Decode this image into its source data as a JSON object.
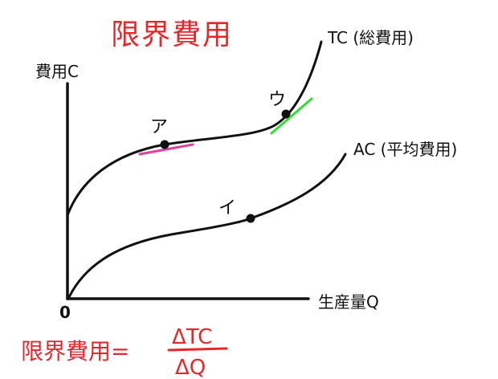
{
  "title": "限界費用",
  "axes": {
    "y_label": "費用C",
    "x_label": "生産量Q",
    "origin": "0"
  },
  "curves": {
    "tc_label": "TC (総費用)",
    "ac_label": "AC (平均費用)"
  },
  "points": {
    "a": "ア",
    "i": "イ",
    "u": "ウ"
  },
  "formula": {
    "lhs": "限界費用=",
    "numerator": "ΔTC",
    "denominator": "ΔQ"
  },
  "colors": {
    "title": "#e8262a",
    "formula": "#e8262a",
    "tangent_a": "#e040a0",
    "tangent_u": "#33dd33",
    "ink": "#111111"
  }
}
